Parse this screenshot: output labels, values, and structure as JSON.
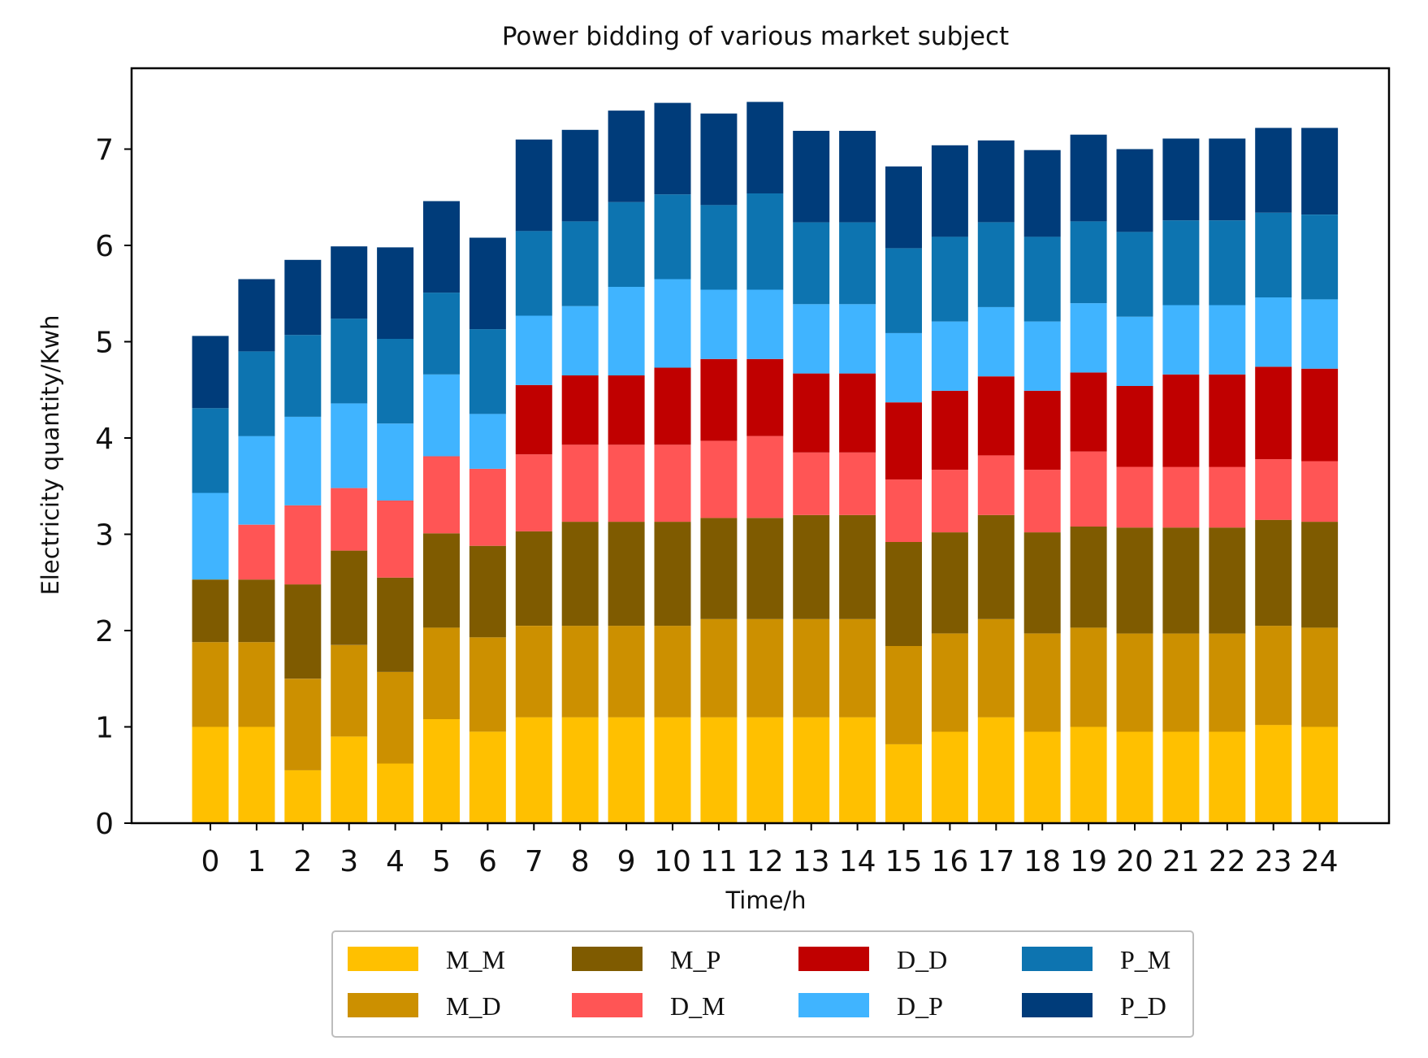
{
  "chart_data": {
    "type": "bar",
    "stacked": true,
    "title": "Power bidding of various market subject",
    "xlabel": "Time/h",
    "ylabel": "Electricity quantity/Kwh",
    "ylim": [
      0,
      7.8
    ],
    "yticks": [
      0,
      1,
      2,
      3,
      4,
      5,
      6,
      7
    ],
    "grid": false,
    "legend_position": "bottom-center",
    "categories": [
      "0",
      "1",
      "2",
      "3",
      "4",
      "5",
      "6",
      "7",
      "8",
      "9",
      "10",
      "11",
      "12",
      "13",
      "14",
      "15",
      "16",
      "17",
      "18",
      "19",
      "20",
      "21",
      "22",
      "23",
      "24"
    ],
    "series": [
      {
        "name": "M_M",
        "color": "#FFC000",
        "values": [
          1.0,
          1.0,
          0.55,
          0.9,
          0.62,
          1.08,
          0.95,
          1.1,
          1.1,
          1.1,
          1.1,
          1.1,
          1.1,
          1.1,
          1.1,
          0.82,
          0.95,
          1.1,
          0.95,
          1.0,
          0.95,
          0.95,
          0.95,
          1.02,
          1.0
        ]
      },
      {
        "name": "M_D",
        "color": "#CC9000",
        "values": [
          0.88,
          0.88,
          0.95,
          0.95,
          0.95,
          0.95,
          0.98,
          0.95,
          0.95,
          0.95,
          0.95,
          1.02,
          1.02,
          1.02,
          1.02,
          1.02,
          1.02,
          1.02,
          1.02,
          1.03,
          1.02,
          1.02,
          1.02,
          1.03,
          1.03
        ]
      },
      {
        "name": "M_P",
        "color": "#7F5B00",
        "values": [
          0.65,
          0.65,
          0.98,
          0.98,
          0.98,
          0.98,
          0.95,
          0.98,
          1.08,
          1.08,
          1.08,
          1.05,
          1.05,
          1.08,
          1.08,
          1.08,
          1.05,
          1.08,
          1.05,
          1.05,
          1.1,
          1.1,
          1.1,
          1.1,
          1.1
        ]
      },
      {
        "name": "D_M",
        "color": "#FF5555",
        "values": [
          0.0,
          0.57,
          0.82,
          0.65,
          0.8,
          0.8,
          0.8,
          0.8,
          0.8,
          0.8,
          0.8,
          0.8,
          0.85,
          0.65,
          0.65,
          0.65,
          0.65,
          0.62,
          0.65,
          0.78,
          0.63,
          0.63,
          0.63,
          0.63,
          0.63
        ]
      },
      {
        "name": "D_D",
        "color": "#C00000",
        "values": [
          0.0,
          0.0,
          0.0,
          0.0,
          0.0,
          0.0,
          0.0,
          0.72,
          0.72,
          0.72,
          0.8,
          0.85,
          0.8,
          0.82,
          0.82,
          0.8,
          0.82,
          0.82,
          0.82,
          0.82,
          0.84,
          0.96,
          0.96,
          0.96,
          0.96
        ]
      },
      {
        "name": "D_P",
        "color": "#40B4FF",
        "values": [
          0.9,
          0.92,
          0.92,
          0.88,
          0.8,
          0.85,
          0.57,
          0.72,
          0.72,
          0.92,
          0.92,
          0.72,
          0.72,
          0.72,
          0.72,
          0.72,
          0.72,
          0.72,
          0.72,
          0.72,
          0.72,
          0.72,
          0.72,
          0.72,
          0.72
        ]
      },
      {
        "name": "P_M",
        "color": "#0D74B0",
        "values": [
          0.88,
          0.88,
          0.85,
          0.88,
          0.88,
          0.85,
          0.88,
          0.88,
          0.88,
          0.88,
          0.88,
          0.88,
          1.0,
          0.85,
          0.85,
          0.88,
          0.88,
          0.88,
          0.88,
          0.85,
          0.88,
          0.88,
          0.88,
          0.88,
          0.88
        ]
      },
      {
        "name": "P_D",
        "color": "#003C7A",
        "values": [
          0.75,
          0.75,
          0.78,
          0.75,
          0.95,
          0.95,
          0.95,
          0.95,
          0.95,
          0.95,
          0.95,
          0.95,
          0.95,
          0.95,
          0.95,
          0.85,
          0.95,
          0.85,
          0.9,
          0.9,
          0.86,
          0.85,
          0.85,
          0.88,
          0.9
        ]
      }
    ]
  }
}
